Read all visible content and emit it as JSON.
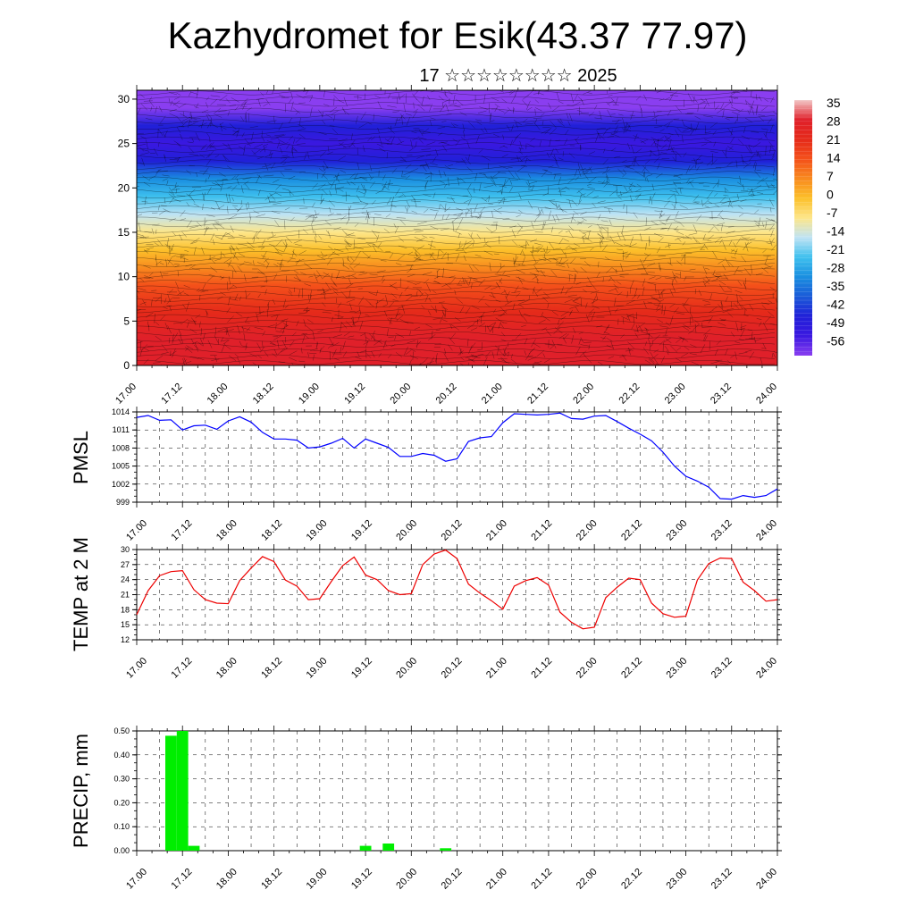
{
  "title": "Kazhydromet for Esik(43.37 77.97)",
  "subtitle": "17 ☆☆☆☆☆☆☆☆ 2025",
  "time_labels": [
    "17.00",
    "17.12",
    "18.00",
    "18.12",
    "19.00",
    "19.12",
    "20.00",
    "20.12",
    "21.00",
    "21.12",
    "22.00",
    "22.12",
    "23.00",
    "23.12",
    "24.00"
  ],
  "chart_data": [
    {
      "id": "cross_section",
      "type": "heatmap",
      "title": "",
      "xlabel": "",
      "ylabel": "",
      "x": [
        "17.00",
        "17.12",
        "18.00",
        "18.12",
        "19.00",
        "19.12",
        "20.00",
        "20.12",
        "21.00",
        "21.12",
        "22.00",
        "22.12",
        "23.00",
        "23.12",
        "24.00"
      ],
      "yticks": [
        0,
        5,
        10,
        15,
        20,
        25,
        30
      ],
      "ylim": [
        0,
        31
      ],
      "colorbar": {
        "labels": [
          "35",
          "28",
          "21",
          "14",
          "7",
          "0",
          "-7",
          "-14",
          "-21",
          "-28",
          "-35",
          "-42",
          "-49",
          "-56"
        ],
        "stops": [
          {
            "v": 35,
            "color": "#f2c6c6"
          },
          {
            "v": 28,
            "color": "#e0202a"
          },
          {
            "v": 21,
            "color": "#e52a1a"
          },
          {
            "v": 14,
            "color": "#f4501a"
          },
          {
            "v": 7,
            "color": "#f88a1e"
          },
          {
            "v": 0,
            "color": "#fcc02a"
          },
          {
            "v": -7,
            "color": "#fde68a"
          },
          {
            "v": -14,
            "color": "#bfe3f4"
          },
          {
            "v": -21,
            "color": "#3ec0ee"
          },
          {
            "v": -28,
            "color": "#1a8ee0"
          },
          {
            "v": -35,
            "color": "#1a5ad8"
          },
          {
            "v": -42,
            "color": "#2020d8"
          },
          {
            "v": -49,
            "color": "#3a18e0"
          },
          {
            "v": -56,
            "color": "#8a3ef0"
          }
        ]
      },
      "temperature_profile": [
        {
          "h": 0,
          "t": 30
        },
        {
          "h": 3,
          "t": 26
        },
        {
          "h": 6,
          "t": 21
        },
        {
          "h": 9,
          "t": 13
        },
        {
          "h": 11,
          "t": 8
        },
        {
          "h": 13,
          "t": 2
        },
        {
          "h": 15,
          "t": -6
        },
        {
          "h": 17,
          "t": -14
        },
        {
          "h": 19,
          "t": -22
        },
        {
          "h": 21,
          "t": -30
        },
        {
          "h": 23,
          "t": -40
        },
        {
          "h": 25,
          "t": -50
        },
        {
          "h": 27,
          "t": -44
        },
        {
          "h": 29,
          "t": -56
        },
        {
          "h": 31,
          "t": -56
        }
      ]
    },
    {
      "id": "pmsl",
      "type": "line",
      "ylabel": "PMSL",
      "xlabel": "",
      "ylim": [
        999,
        1014
      ],
      "yticks": [
        999,
        1002,
        1005,
        1008,
        1011,
        1014
      ],
      "color": "#0000ff",
      "x": [
        0,
        3,
        6,
        9,
        12,
        15,
        18,
        21,
        24,
        27,
        30,
        33,
        36,
        39,
        42,
        45,
        48,
        51,
        54,
        57,
        60,
        63,
        66,
        69,
        72,
        75,
        78,
        81,
        84,
        87,
        90,
        93,
        96,
        99,
        102,
        105,
        108,
        111,
        114,
        117,
        120,
        123,
        126,
        129,
        132,
        135,
        138,
        141,
        144,
        147,
        150,
        153,
        156,
        159,
        162,
        165,
        168
      ],
      "values": [
        1013.1,
        1013.4,
        1012.6,
        1012.7,
        1011.0,
        1011.7,
        1011.8,
        1011.1,
        1012.5,
        1013.2,
        1012.3,
        1010.6,
        1009.5,
        1009.5,
        1009.3,
        1008.0,
        1008.2,
        1008.8,
        1009.6,
        1008.0,
        1009.5,
        1008.8,
        1008.1,
        1006.6,
        1006.6,
        1007.1,
        1006.8,
        1005.8,
        1006.2,
        1009.1,
        1009.7,
        1009.9,
        1012.2,
        1013.7,
        1013.6,
        1013.5,
        1013.6,
        1013.8,
        1012.9,
        1012.8,
        1013.3,
        1013.4,
        1012.4,
        1011.3,
        1010.3,
        1009.2,
        1007.3,
        1005.0,
        1003.3,
        1002.5,
        1001.5,
        999.6,
        999.5,
        1000.1,
        999.8,
        1000.1,
        1001.2
      ]
    },
    {
      "id": "temp2m",
      "type": "line",
      "ylabel": "TEMP at 2 M",
      "xlabel": "",
      "ylim": [
        12,
        30
      ],
      "yticks": [
        12,
        15,
        18,
        21,
        24,
        27,
        30
      ],
      "color": "#ee0000",
      "x": [
        0,
        3,
        6,
        9,
        12,
        15,
        18,
        21,
        24,
        27,
        30,
        33,
        36,
        39,
        42,
        45,
        48,
        51,
        54,
        57,
        60,
        63,
        66,
        69,
        72,
        75,
        78,
        81,
        84,
        87,
        90,
        93,
        96,
        99,
        102,
        105,
        108,
        111,
        114,
        117,
        120,
        123,
        126,
        129,
        132,
        135,
        138,
        141,
        144,
        147,
        150,
        153,
        156,
        159,
        162,
        165,
        168
      ],
      "values": [
        17.0,
        21.8,
        24.8,
        25.6,
        25.8,
        22.0,
        20.0,
        19.3,
        19.2,
        23.8,
        26.3,
        28.6,
        27.6,
        23.9,
        22.7,
        20.0,
        20.2,
        23.6,
        26.8,
        28.5,
        24.9,
        24.0,
        21.8,
        21.0,
        21.2,
        27.0,
        29.1,
        29.9,
        28.2,
        23.1,
        21.3,
        19.8,
        18.1,
        22.7,
        23.8,
        24.4,
        22.9,
        17.5,
        15.5,
        14.2,
        14.5,
        20.4,
        22.5,
        24.3,
        24.0,
        19.3,
        17.2,
        16.5,
        16.7,
        23.9,
        27.2,
        28.3,
        28.2,
        23.5,
        21.8,
        19.7,
        20.0
      ]
    },
    {
      "id": "precip",
      "type": "bar",
      "ylabel": "PRECIP, mm",
      "xlabel": "",
      "ylim": [
        0,
        0.5
      ],
      "yticks": [
        "0.00",
        "0.10",
        "0.20",
        "0.30",
        "0.40",
        "0.50"
      ],
      "color": "#00ee00",
      "x": [
        0,
        3,
        6,
        9,
        12,
        15,
        18,
        21,
        24,
        27,
        30,
        33,
        36,
        39,
        42,
        45,
        48,
        51,
        54,
        57,
        60,
        63,
        66,
        69,
        72,
        75,
        78,
        81,
        84,
        87,
        90,
        93,
        96,
        99,
        102,
        105,
        108,
        111,
        114,
        117,
        120,
        123,
        126,
        129,
        132,
        135,
        138,
        141,
        144,
        147,
        150,
        153,
        156,
        159,
        162,
        165,
        168
      ],
      "values": [
        0,
        0,
        0,
        0.48,
        0.5,
        0.02,
        0,
        0,
        0,
        0,
        0,
        0,
        0,
        0,
        0,
        0,
        0,
        0,
        0,
        0,
        0.02,
        0,
        0.03,
        0,
        0,
        0,
        0,
        0.01,
        0,
        0,
        0,
        0,
        0,
        0,
        0,
        0,
        0,
        0,
        0,
        0,
        0,
        0,
        0,
        0,
        0,
        0,
        0,
        0,
        0,
        0,
        0,
        0,
        0,
        0,
        0,
        0,
        0
      ]
    }
  ]
}
